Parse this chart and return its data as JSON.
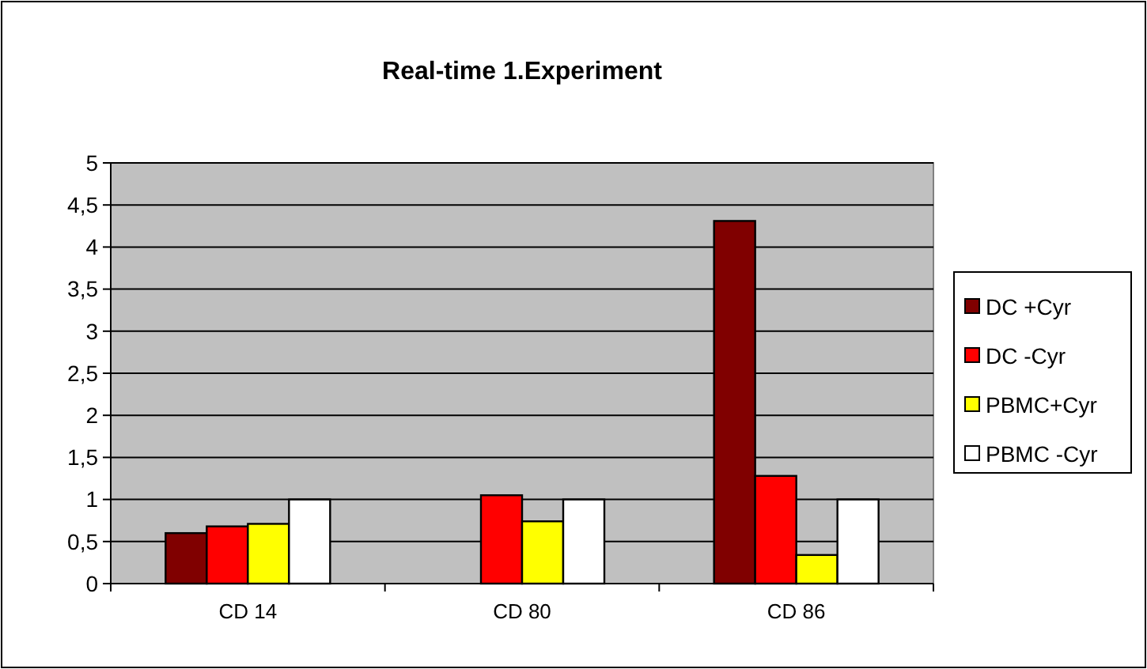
{
  "chart_data": {
    "type": "bar",
    "title": "Real-time 1.Experiment",
    "categories": [
      "CD 14",
      "CD 80",
      "CD 86"
    ],
    "series": [
      {
        "name": "DC +Cyr",
        "color": "#800000",
        "values": [
          0.6,
          null,
          4.31
        ]
      },
      {
        "name": "DC -Cyr",
        "color": "#ff0000",
        "values": [
          0.68,
          1.05,
          1.28
        ]
      },
      {
        "name": "PBMC+Cyr",
        "color": "#ffff00",
        "values": [
          0.71,
          0.74,
          0.34
        ]
      },
      {
        "name": "PBMC -Cyr",
        "color": "#ffffff",
        "values": [
          1.0,
          1.0,
          1.0
        ]
      }
    ],
    "ylim": [
      0,
      5
    ],
    "yticks": [
      0,
      {
        "value": 0.5,
        "label": "0,5"
      },
      1,
      {
        "value": 1.5,
        "label": "1,5"
      },
      2,
      {
        "value": 2.5,
        "label": "2,5"
      },
      3,
      {
        "value": 3.5,
        "label": "3,5"
      },
      4,
      {
        "value": 4.5,
        "label": "4,5"
      },
      5
    ],
    "grid": "y",
    "legend": "right"
  }
}
